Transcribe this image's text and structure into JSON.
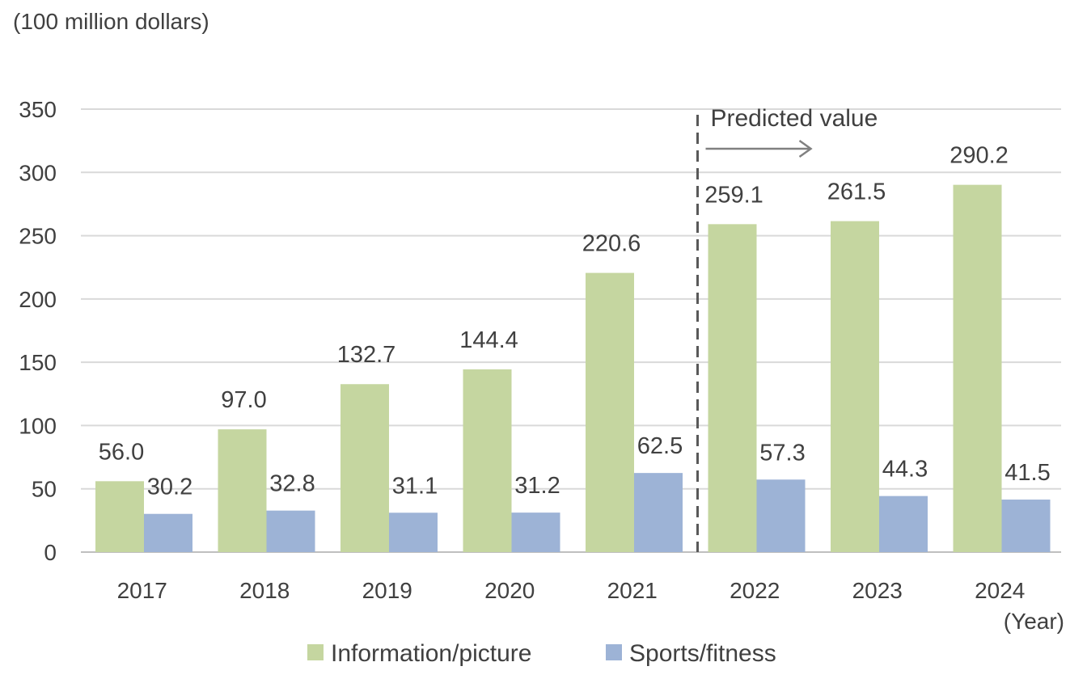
{
  "chart_data": {
    "type": "bar",
    "title": "",
    "ylabel": "(100 million dollars)",
    "xlabel": "(Year)",
    "categories": [
      "2017",
      "2018",
      "2019",
      "2020",
      "2021",
      "2022",
      "2023",
      "2024"
    ],
    "series": [
      {
        "name": "Information/picture",
        "color": "#C5D6A0",
        "values": [
          56.0,
          97.0,
          132.7,
          144.4,
          220.6,
          259.1,
          261.5,
          290.2
        ],
        "labels": [
          "56.0",
          "97.0",
          "132.7",
          "144.4",
          "220.6",
          "259.1",
          "261.5",
          "290.2"
        ]
      },
      {
        "name": "Sports/fitness",
        "color": "#9DB3D6",
        "values": [
          30.2,
          32.8,
          31.1,
          31.2,
          62.5,
          57.3,
          44.3,
          41.5
        ],
        "labels": [
          "30.2",
          "32.8",
          "31.1",
          "31.2",
          "62.5",
          "57.3",
          "44.3",
          "41.5"
        ]
      }
    ],
    "ylim": [
      0,
      350
    ],
    "yticks": [
      "0",
      "50",
      "100",
      "150",
      "200",
      "250",
      "300",
      "350"
    ],
    "grid": true,
    "legend": "bottom-center",
    "annotation": {
      "text": "Predicted value",
      "start_category": "2022"
    }
  }
}
